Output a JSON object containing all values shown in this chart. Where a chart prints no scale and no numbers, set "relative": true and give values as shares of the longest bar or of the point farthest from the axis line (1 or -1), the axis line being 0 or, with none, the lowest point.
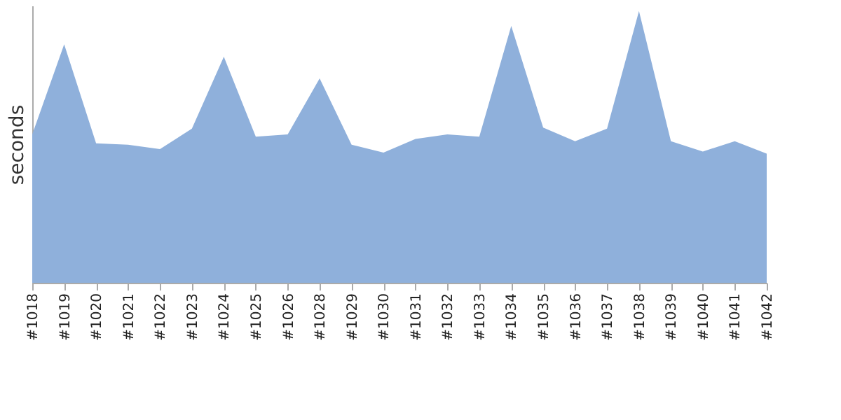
{
  "chart_data": {
    "type": "area",
    "ylabel": "seconds",
    "relative": true,
    "color": "#8fb0db",
    "categories": [
      "#1018",
      "#1019",
      "#1020",
      "#1021",
      "#1022",
      "#1023",
      "#1024",
      "#1025",
      "#1026",
      "#1028",
      "#1029",
      "#1030",
      "#1031",
      "#1032",
      "#1033",
      "#1034",
      "#1035",
      "#1036",
      "#1037",
      "#1038",
      "#1039",
      "#1040",
      "#1041",
      "#1042"
    ],
    "values": [
      0.546,
      0.878,
      0.513,
      0.508,
      0.492,
      0.567,
      0.832,
      0.538,
      0.546,
      0.752,
      0.508,
      0.479,
      0.529,
      0.546,
      0.538,
      0.945,
      0.571,
      0.521,
      0.567,
      1,
      0.521,
      0.483,
      0.521,
      0.475
    ]
  }
}
